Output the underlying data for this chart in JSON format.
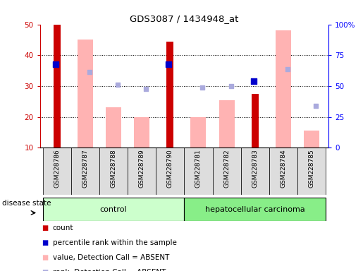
{
  "title": "GDS3087 / 1434948_at",
  "samples": [
    "GSM228786",
    "GSM228787",
    "GSM228788",
    "GSM228789",
    "GSM228790",
    "GSM228781",
    "GSM228782",
    "GSM228783",
    "GSM228784",
    "GSM228785"
  ],
  "groups": [
    "control",
    "control",
    "control",
    "control",
    "control",
    "hepatocellular carcinoma",
    "hepatocellular carcinoma",
    "hepatocellular carcinoma",
    "hepatocellular carcinoma",
    "hepatocellular carcinoma"
  ],
  "count_values": [
    50,
    null,
    null,
    null,
    44.5,
    null,
    null,
    27.5,
    null,
    null
  ],
  "percentile_values": [
    37,
    null,
    null,
    null,
    37,
    null,
    null,
    31.5,
    null,
    null
  ],
  "absent_value_bars": [
    null,
    45,
    23,
    20,
    null,
    20,
    25.5,
    null,
    48,
    15.5
  ],
  "absent_rank_dots": [
    null,
    34.5,
    30.5,
    29,
    null,
    29.5,
    30,
    null,
    35.5,
    23.5
  ],
  "ylim": [
    10,
    50
  ],
  "y2lim": [
    0,
    100
  ],
  "yticks": [
    10,
    20,
    30,
    40,
    50
  ],
  "y2ticks": [
    0,
    25,
    50,
    75,
    100
  ],
  "y2ticklabels": [
    "0",
    "25",
    "50",
    "75",
    "100%"
  ],
  "dotted_lines": [
    20,
    30,
    40
  ],
  "color_count": "#cc0000",
  "color_percentile": "#0000cc",
  "color_absent_value": "#ffb3b3",
  "color_absent_rank": "#aaaadd",
  "color_control_bg": "#ccffcc",
  "color_cancer_bg": "#88ee88",
  "color_xlabel_bg": "#dddddd",
  "bar_width": 0.55,
  "legend_items": [
    "count",
    "percentile rank within the sample",
    "value, Detection Call = ABSENT",
    "rank, Detection Call = ABSENT"
  ],
  "legend_colors": [
    "#cc0000",
    "#0000cc",
    "#ffb3b3",
    "#aaaadd"
  ]
}
